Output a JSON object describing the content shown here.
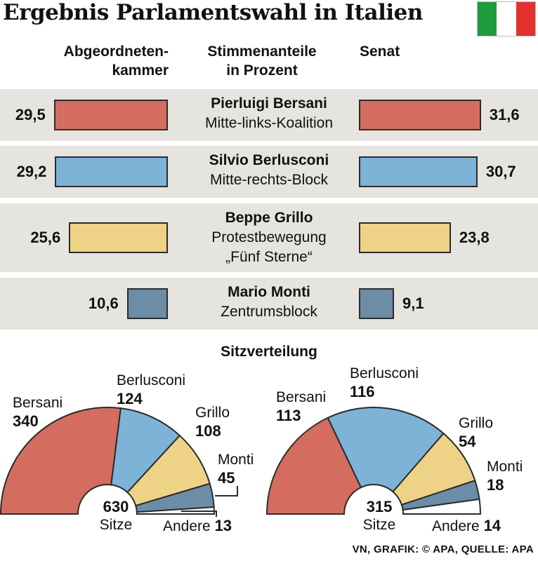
{
  "title": "Ergebnis Parlamentswahl in Italien",
  "flag_colors": [
    "#1f9a3d",
    "#ffffff",
    "#e3312d"
  ],
  "headers": {
    "left": [
      "Abgeordneten-",
      "kammer"
    ],
    "middle": [
      "Stimmenanteile",
      "in Prozent"
    ],
    "right": "Senat"
  },
  "chart_data": [
    {
      "type": "bar",
      "title": "",
      "ylabel": "Stimmenanteile in Prozent",
      "categories": [
        "Pierluigi Bersani",
        "Silvio Berlusconi",
        "Beppe Grillo",
        "Mario Monti"
      ],
      "series": [
        {
          "name": "Abgeordnetenkammer",
          "values": [
            29.5,
            29.2,
            25.6,
            10.6
          ]
        },
        {
          "name": "Senat",
          "values": [
            31.6,
            30.7,
            23.8,
            9.1
          ]
        }
      ],
      "value_labels": {
        "Abgeordnetenkammer": [
          "29,5",
          "29,2",
          "25,6",
          "10,6"
        ],
        "Senat": [
          "31,6",
          "30,7",
          "23,8",
          "9,1"
        ]
      },
      "subtitles": [
        [
          "Mitte-links-Koalition"
        ],
        [
          "Mitte-rechts-Block"
        ],
        [
          "Protestbewegung",
          "„Fünf Sterne“"
        ],
        [
          "Zentrumsblock"
        ]
      ],
      "colors": [
        "#d46d5f",
        "#7db3d6",
        "#eed285",
        "#6d8ca8"
      ]
    },
    {
      "type": "pie",
      "title": "Sitzverteilung",
      "charts": [
        {
          "name": "Abgeordnetenkammer",
          "total_value": 630,
          "total": "630",
          "unit": "Sitze",
          "slices": [
            {
              "name": "Bersani",
              "value": 340,
              "label": "340",
              "color": "#d46d5f"
            },
            {
              "name": "Berlusconi",
              "value": 124,
              "label": "124",
              "color": "#7db3d6"
            },
            {
              "name": "Grillo",
              "value": 108,
              "label": "108",
              "color": "#eed285"
            },
            {
              "name": "Monti",
              "value": 45,
              "label": "45",
              "color": "#6d8ca8"
            },
            {
              "name": "Andere",
              "value": 13,
              "label": "13",
              "color": "#ffffff"
            }
          ]
        },
        {
          "name": "Senat",
          "total_value": 315,
          "total": "315",
          "unit": "Sitze",
          "slices": [
            {
              "name": "Bersani",
              "value": 113,
              "label": "113",
              "color": "#d46d5f"
            },
            {
              "name": "Berlusconi",
              "value": 116,
              "label": "116",
              "color": "#7db3d6"
            },
            {
              "name": "Grillo",
              "value": 54,
              "label": "54",
              "color": "#eed285"
            },
            {
              "name": "Monti",
              "value": 18,
              "label": "18",
              "color": "#6d8ca8"
            },
            {
              "name": "Andere",
              "value": 14,
              "label": "14",
              "color": "#ffffff"
            }
          ]
        }
      ]
    }
  ],
  "source": "VN, GRAFIK: © APA, QUELLE: APA"
}
